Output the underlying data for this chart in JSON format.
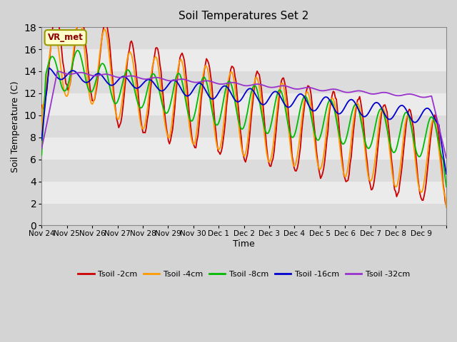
{
  "title": "Soil Temperatures Set 2",
  "xlabel": "Time",
  "ylabel": "Soil Temperature (C)",
  "ylim": [
    0,
    18
  ],
  "yticks": [
    0,
    2,
    4,
    6,
    8,
    10,
    12,
    14,
    16,
    18
  ],
  "line_colors": {
    "2cm": "#cc0000",
    "4cm": "#ff9900",
    "8cm": "#00bb00",
    "16cm": "#0000cc",
    "32cm": "#9933cc"
  },
  "annotation_text": "VR_met",
  "x_tick_positions": [
    0,
    1,
    2,
    3,
    4,
    5,
    6,
    7,
    8,
    9,
    10,
    11,
    12,
    13,
    14,
    15,
    16
  ],
  "x_labels": [
    "Nov 24",
    "Nov 25",
    "Nov 26",
    "Nov 27",
    "Nov 28",
    "Nov 29",
    "Nov 30",
    "Dec 1",
    "Dec 2",
    "Dec 3",
    "Dec 4",
    "Dec 5",
    "Dec 6",
    "Dec 7",
    "Dec 8",
    "Dec 9",
    ""
  ],
  "legend_labels": [
    "Tsoil -2cm",
    "Tsoil -4cm",
    "Tsoil -8cm",
    "Tsoil -16cm",
    "Tsoil -32cm"
  ],
  "band_colors": [
    "#dcdcdc",
    "#ebebeb"
  ],
  "fig_facecolor": "#d4d4d4",
  "axes_facecolor": "#e4e4e4"
}
